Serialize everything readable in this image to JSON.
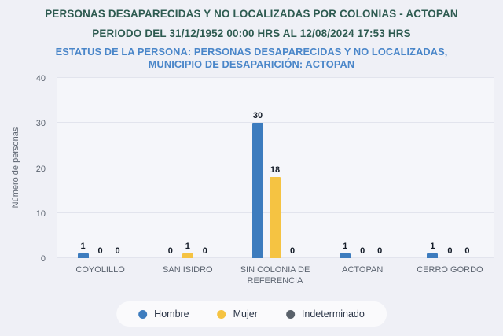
{
  "header": {
    "title_line1": "PERSONAS DESAPARECIDAS Y NO LOCALIZADAS POR COLONIAS - ACTOPAN",
    "title_line2": "PERIODO DEL 31/12/1952 00:00 HRS AL 12/08/2024 17:53 HRS",
    "subtitle_line1": "ESTATUS DE LA PERSONA: PERSONAS DESAPARECIDAS Y NO LOCALIZADAS,",
    "subtitle_line2": "MUNICIPIO DE DESAPARICIÓN: ACTOPAN"
  },
  "chart_data": {
    "type": "bar",
    "title": "PERSONAS DESAPARECIDAS Y NO LOCALIZADAS POR COLONIAS - ACTOPAN",
    "subtitle": "PERIODO DEL 31/12/1952 00:00 HRS AL 12/08/2024 17:53 HRS",
    "categories": [
      "COYOLILLO",
      "SAN ISIDRO",
      "SIN COLONIA DE REFERENCIA",
      "ACTOPAN",
      "CERRO GORDO"
    ],
    "series": [
      {
        "name": "Hombre",
        "color": "#3d7cbe",
        "values": [
          1,
          0,
          30,
          1,
          1
        ]
      },
      {
        "name": "Mujer",
        "color": "#f5c342",
        "values": [
          0,
          1,
          18,
          0,
          0
        ]
      },
      {
        "name": "Indeterminado",
        "color": "#59616a",
        "values": [
          0,
          0,
          0,
          0,
          0
        ]
      }
    ],
    "xlabel": "",
    "ylabel": "Número de personas",
    "ylim": [
      0,
      40
    ],
    "yticks": [
      0,
      10,
      20,
      30,
      40
    ],
    "grid": true,
    "bar_value_labels": true,
    "legend_position": "bottom"
  },
  "colors": {
    "background": "#eff0f6",
    "plot_background": "#f5f6fa",
    "gridline": "#e2e4ed",
    "title": "#2e5b51",
    "subtitle": "#4a86c9",
    "axis_text": "#5c6470",
    "value_label": "#141c28",
    "bar_hombre": "#3d7cbe",
    "bar_mujer": "#f5c342",
    "bar_indeterminado": "#59616a"
  }
}
